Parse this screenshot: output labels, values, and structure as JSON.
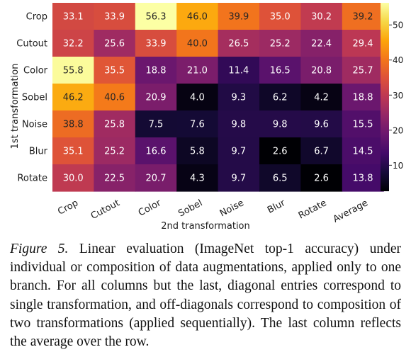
{
  "chart_data": {
    "type": "heatmap",
    "rows": [
      "Crop",
      "Cutout",
      "Color",
      "Sobel",
      "Noise",
      "Blur",
      "Rotate"
    ],
    "columns": [
      "Crop",
      "Cutout",
      "Color",
      "Sobel",
      "Noise",
      "Blur",
      "Rotate",
      "Average"
    ],
    "values": [
      [
        "33.1",
        "33.9",
        "56.3",
        "46.0",
        "39.9",
        "35.0",
        "30.2",
        "39.2"
      ],
      [
        "32.2",
        "25.6",
        "33.9",
        "40.0",
        "26.5",
        "25.2",
        "22.4",
        "29.4"
      ],
      [
        "55.8",
        "35.5",
        "18.8",
        "21.0",
        "11.4",
        "16.5",
        "20.8",
        "25.7"
      ],
      [
        "46.2",
        "40.6",
        "20.9",
        "4.0",
        "9.3",
        "6.2",
        "4.2",
        "18.8"
      ],
      [
        "38.8",
        "25.8",
        "7.5",
        "7.6",
        "9.8",
        "9.8",
        "9.6",
        "15.5"
      ],
      [
        "35.1",
        "25.2",
        "16.6",
        "5.8",
        "9.7",
        "2.6",
        "6.7",
        "14.5"
      ],
      [
        "30.0",
        "22.5",
        "20.7",
        "4.3",
        "9.7",
        "6.5",
        "2.6",
        "13.8"
      ]
    ],
    "ylabel": "1st transformation",
    "xlabel": "2nd transformation",
    "colormap": "inferno",
    "vmin": 2.6,
    "vmax": 56.3,
    "colorbar_ticks": [
      "10",
      "20",
      "30",
      "40",
      "50"
    ]
  },
  "caption": {
    "lead": "Figure 5.",
    "text": " Linear evaluation (ImageNet top-1 accuracy) under individual or composition of data augmentations, applied only to one branch. For all columns but the last, diagonal entries correspond to single transformation, and off-diagonals correspond to composition of two transformations (applied sequentially). The last column reflects the average over the row."
  }
}
